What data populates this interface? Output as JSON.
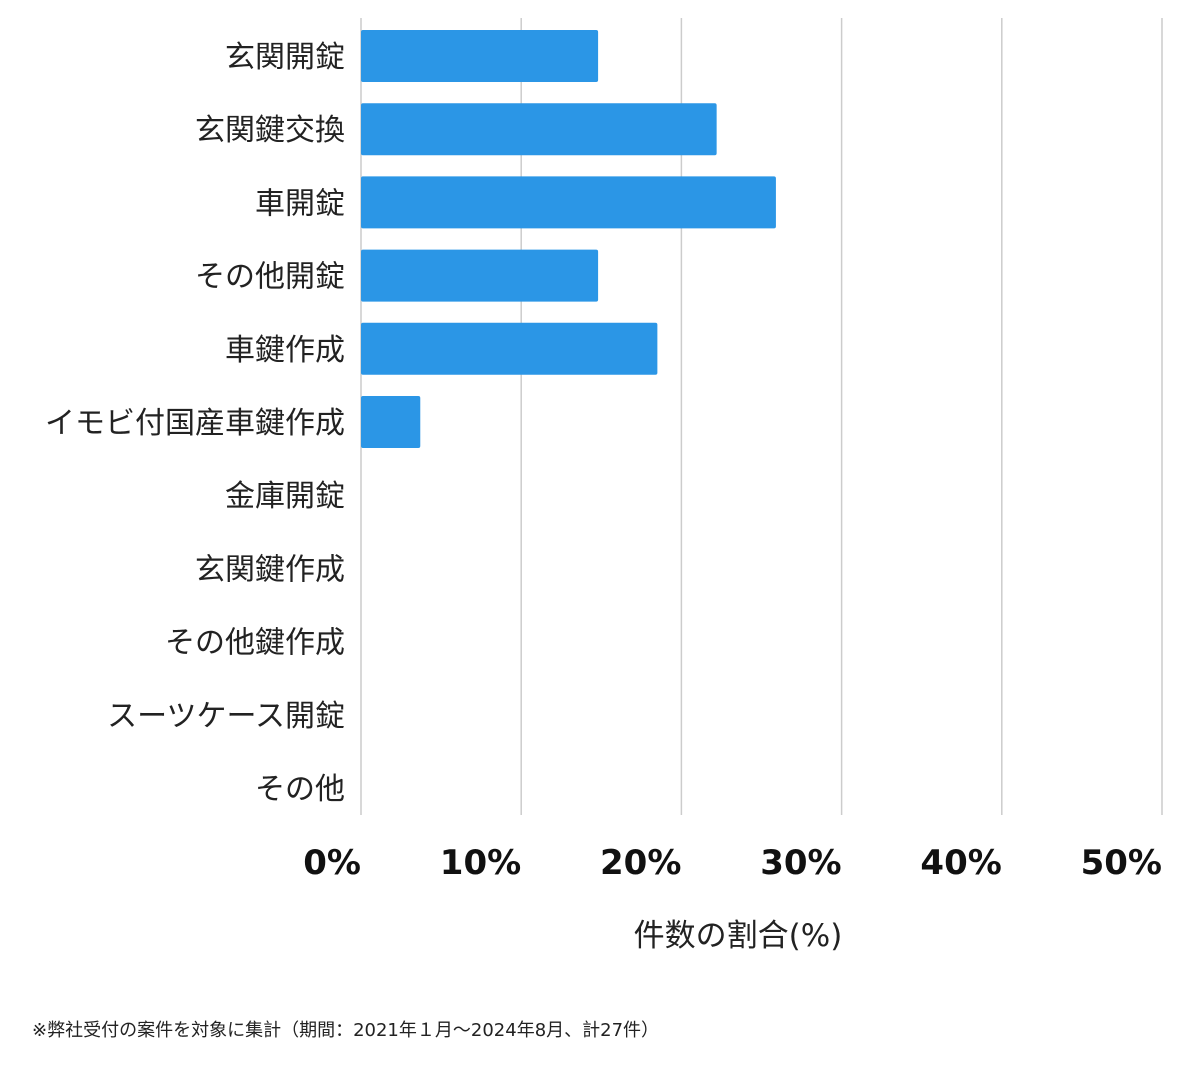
{
  "chart_data": {
    "type": "bar",
    "orientation": "horizontal",
    "categories": [
      "玄関開錠",
      "玄関鍵交換",
      "車開錠",
      "その他開錠",
      "車鍵作成",
      "イモビ付国産車鍵作成",
      "金庫開錠",
      "玄関鍵作成",
      "その他鍵作成",
      "スーツケース開錠",
      "その他"
    ],
    "values": [
      14.8,
      22.2,
      25.9,
      14.8,
      18.5,
      3.7,
      0,
      0,
      0,
      0,
      0
    ],
    "xlim": [
      0,
      50
    ],
    "x_ticks": [
      0,
      10,
      20,
      30,
      40,
      50
    ],
    "x_tick_labels": [
      "0%",
      "10%",
      "20%",
      "30%",
      "40%",
      "50%"
    ],
    "xlabel": "件数の割合(%)",
    "ylabel": "",
    "title": "",
    "grid": "vertical",
    "bar_color": "#2b96e6",
    "grid_color": "#cccccc"
  },
  "footnote": "※弊社受付の案件を対象に集計（期間：2021年１月〜2024年8月、計27件）"
}
